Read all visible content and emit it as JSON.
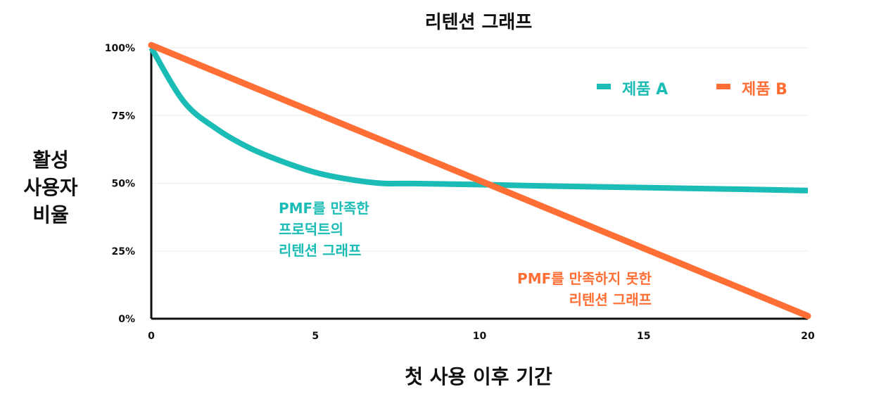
{
  "chart_data": {
    "type": "line",
    "title": "리텐션 그래프",
    "xlabel": "첫 사용 이후 기간",
    "ylabel": [
      "활성",
      "사용자",
      "비율"
    ],
    "xlim": [
      0,
      20
    ],
    "ylim": [
      0,
      100
    ],
    "x_ticks": [
      "0",
      "5",
      "10",
      "15",
      "20"
    ],
    "x_tick_values": [
      0,
      5,
      10,
      15,
      20
    ],
    "y_ticks": [
      "0%",
      "25%",
      "50%",
      "75%",
      "100%"
    ],
    "y_tick_values": [
      0,
      25,
      50,
      75,
      100
    ],
    "grid": true,
    "legend_placement": "top-right",
    "series": [
      {
        "name": "제품 A",
        "color": "#1ABCB5",
        "x": [
          0,
          1,
          2,
          3,
          4,
          5,
          6,
          7,
          8,
          10,
          12,
          15,
          18,
          20
        ],
        "y": [
          100,
          80,
          70,
          63,
          58,
          54,
          51.5,
          50,
          49.9,
          49.5,
          49,
          48.4,
          47.8,
          47.3
        ]
      },
      {
        "name": "제품 B",
        "color": "#FF6F35",
        "x": [
          0,
          20
        ],
        "y": [
          101,
          1
        ]
      }
    ],
    "annotations": [
      {
        "lines": [
          "PMF를 만족한",
          "프로덕트의",
          "리텐션 그래프"
        ],
        "color": "#1ABCB5"
      },
      {
        "lines": [
          "PMF를 만족하지 못한",
          "리텐션 그래프"
        ],
        "color": "#FF6F35"
      }
    ]
  }
}
